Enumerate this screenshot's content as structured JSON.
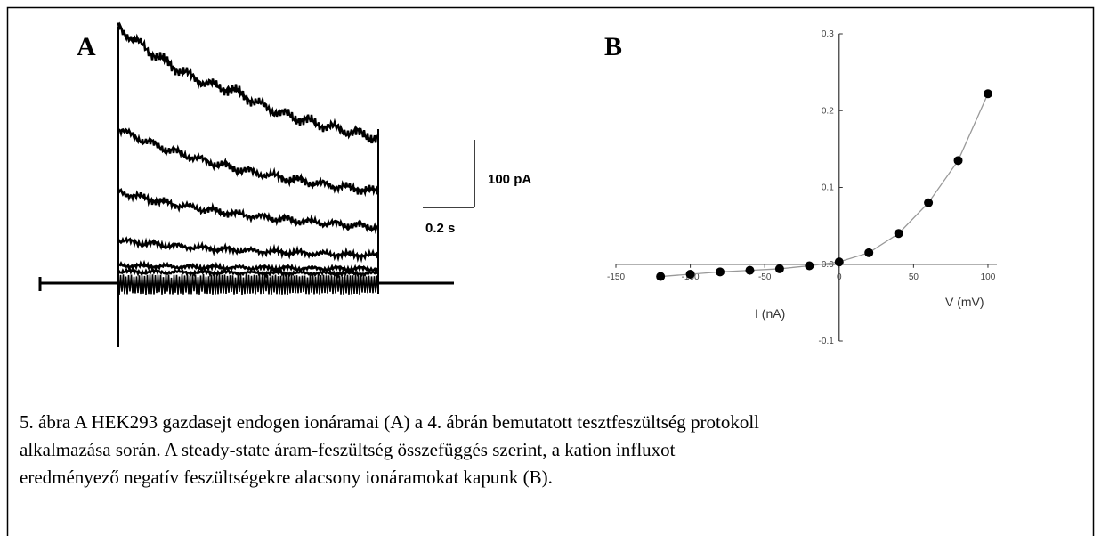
{
  "panel_a": {
    "label": "A",
    "scale_current": "100 pA",
    "scale_time": "0.2 s"
  },
  "chart_data": {
    "type": "scatter",
    "label": "B",
    "x_label": "V (mV)",
    "y_label": "I (nA)",
    "x": [
      -120,
      -100,
      -80,
      -60,
      -40,
      -20,
      0,
      20,
      40,
      60,
      80,
      100
    ],
    "values": [
      -0.016,
      -0.013,
      -0.01,
      -0.008,
      -0.006,
      -0.002,
      0.003,
      0.015,
      0.04,
      0.08,
      0.135,
      0.222
    ],
    "color": "#000000",
    "line_color": "#999999",
    "xlim": [
      -150,
      106
    ],
    "ylim": [
      -0.1,
      0.3
    ],
    "xticks": [
      -150,
      -100,
      -50,
      0,
      50,
      100
    ],
    "yticks": [
      -0.1,
      {
        "value": 0,
        "label": "0.0"
      },
      0.1,
      0.2,
      0.3
    ]
  },
  "caption": [
    "5. ábra A HEK293 gazdasejt endogen ionáramai (A) a 4. ábrán bemutatott tesztfeszültség protokoll",
    "alkalmazása során. A steady-state áram-feszültség összefüggés szerint, a kation influxot",
    "eredményező negatív feszültségekre alacsony ionáramokat kapunk (B)."
  ]
}
